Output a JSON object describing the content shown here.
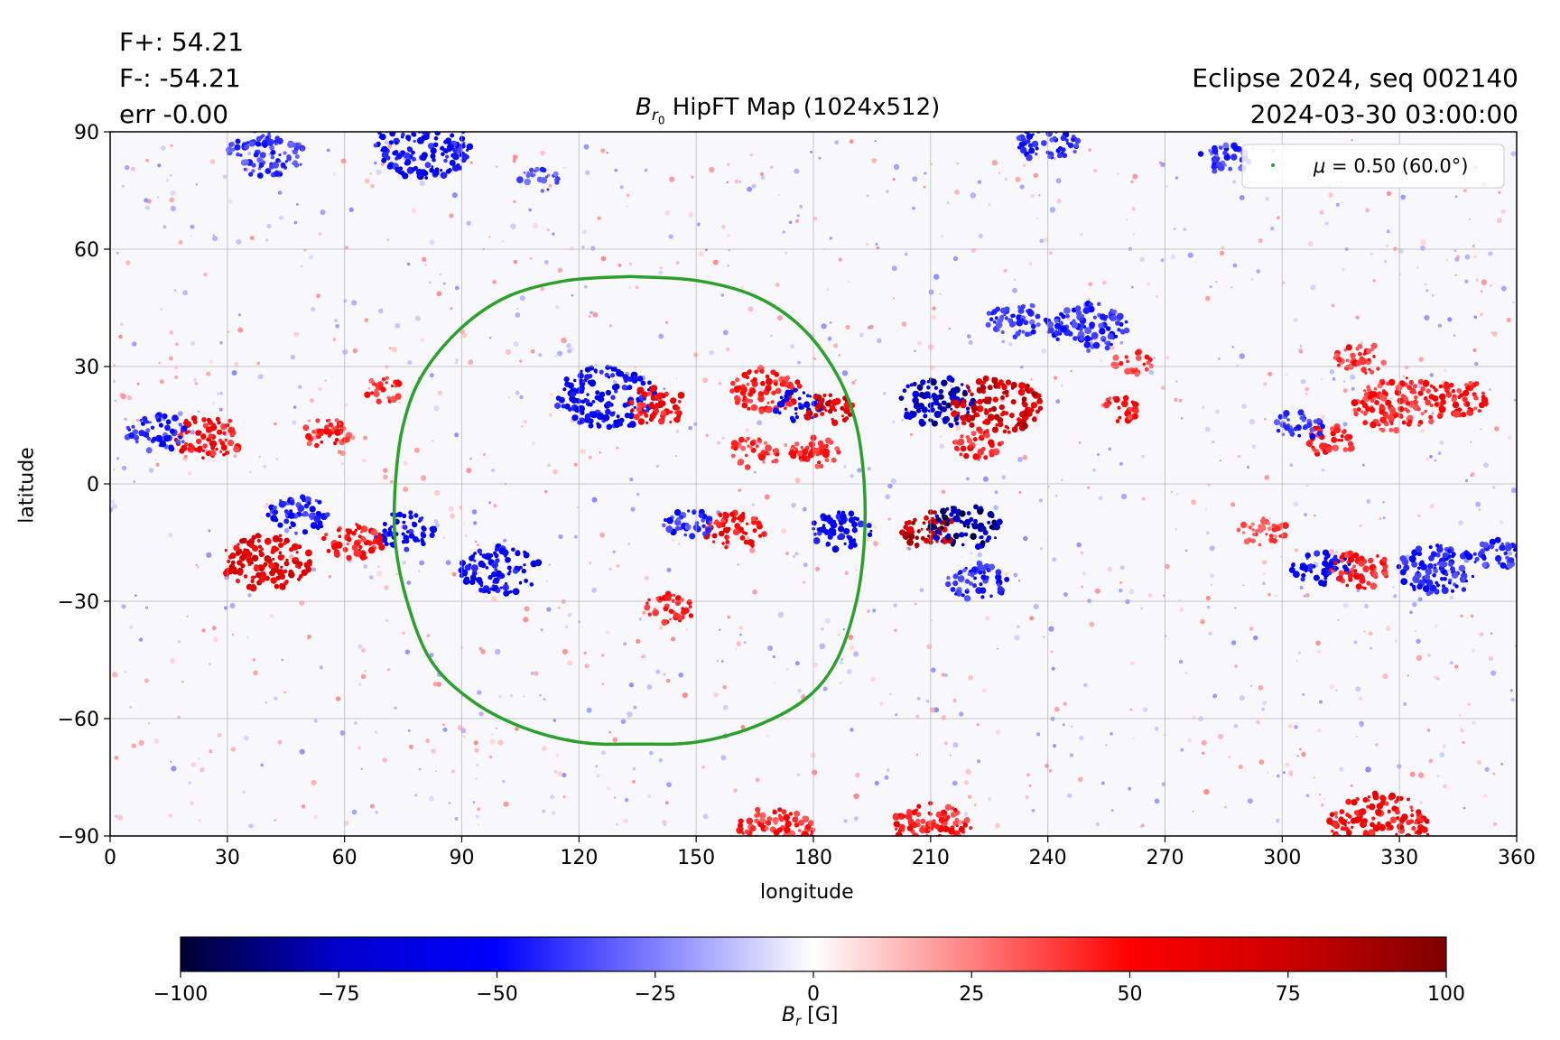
{
  "header": {
    "fplus": "F+: 54.21",
    "fminus": "F-: -54.21",
    "err": "err -0.00",
    "event": "Eclipse 2024, seq 002140",
    "datetime": "2024-03-30 03:00:00"
  },
  "chart_data": {
    "type": "heatmap",
    "title_symbol": "B",
    "title_subscript": "r",
    "title_subsubscript": "0",
    "title_text": " HipFT Map (1024x512)",
    "xlabel": "longitude",
    "ylabel": "latitude",
    "xlim": [
      0,
      360
    ],
    "ylim": [
      -90,
      90
    ],
    "xticks": [
      0,
      30,
      60,
      90,
      120,
      150,
      180,
      210,
      240,
      270,
      300,
      330,
      360
    ],
    "yticks": [
      -90,
      -60,
      -30,
      0,
      30,
      60,
      90
    ],
    "grid": true,
    "legend": {
      "placement": "top-right",
      "label_mu": "μ",
      "label_rest": " = 0.50 (60.0°)",
      "color": "#2ca02c"
    },
    "mu_contour_color": "#2ca02c",
    "mu_contour": [
      [
        133,
        53
      ],
      [
        150,
        52
      ],
      [
        165,
        48
      ],
      [
        177,
        40
      ],
      [
        186,
        28
      ],
      [
        191,
        15
      ],
      [
        193,
        0
      ],
      [
        193,
        -15
      ],
      [
        191,
        -30
      ],
      [
        186,
        -45
      ],
      [
        178,
        -55
      ],
      [
        165,
        -62
      ],
      [
        150,
        -66
      ],
      [
        135,
        -66.5
      ],
      [
        120,
        -66
      ],
      [
        105,
        -62
      ],
      [
        92,
        -55
      ],
      [
        82,
        -45
      ],
      [
        76,
        -30
      ],
      [
        73,
        -15
      ],
      [
        73,
        0
      ],
      [
        75,
        15
      ],
      [
        80,
        28
      ],
      [
        90,
        40
      ],
      [
        102,
        48
      ],
      [
        117,
        52
      ],
      [
        133,
        53
      ]
    ],
    "colorbar": {
      "label_symbol": "B",
      "label_subscript": "r",
      "label_unit": " [G]",
      "range": [
        -100,
        100
      ],
      "ticks": [
        -100,
        -75,
        -50,
        -25,
        0,
        25,
        50,
        75,
        100
      ],
      "colors": [
        "#000033",
        "#0000cc",
        "#0000ff",
        "#ffffff",
        "#ff0000",
        "#cc0000",
        "#800000"
      ]
    },
    "regions": [
      {
        "lon": 127,
        "lat": 22,
        "r": 10,
        "b": -70
      },
      {
        "lon": 140,
        "lat": 20,
        "r": 6,
        "b": 65
      },
      {
        "lon": 168,
        "lat": 24,
        "r": 7,
        "b": 60
      },
      {
        "lon": 176,
        "lat": 20,
        "r": 5,
        "b": -80
      },
      {
        "lon": 184,
        "lat": 19,
        "r": 5,
        "b": 85
      },
      {
        "lon": 165,
        "lat": 8,
        "r": 5,
        "b": 50
      },
      {
        "lon": 180,
        "lat": 8,
        "r": 5,
        "b": 55
      },
      {
        "lon": 212,
        "lat": 21,
        "r": 8,
        "b": -95
      },
      {
        "lon": 227,
        "lat": 20,
        "r": 9,
        "b": 90
      },
      {
        "lon": 222,
        "lat": 10,
        "r": 5,
        "b": 60
      },
      {
        "lon": 210,
        "lat": -12,
        "r": 6,
        "b": 100
      },
      {
        "lon": 219,
        "lat": -11,
        "r": 7,
        "b": -100
      },
      {
        "lon": 222,
        "lat": -25,
        "r": 6,
        "b": -55
      },
      {
        "lon": 187,
        "lat": -12,
        "r": 6,
        "b": -70
      },
      {
        "lon": 160,
        "lat": -12,
        "r": 6,
        "b": 65
      },
      {
        "lon": 148,
        "lat": -10,
        "r": 5,
        "b": -55
      },
      {
        "lon": 143,
        "lat": -32,
        "r": 5,
        "b": 60
      },
      {
        "lon": 100,
        "lat": -22,
        "r": 8,
        "b": -70
      },
      {
        "lon": 75,
        "lat": -12,
        "r": 6,
        "b": -70
      },
      {
        "lon": 48,
        "lat": -8,
        "r": 6,
        "b": -60
      },
      {
        "lon": 40,
        "lat": -20,
        "r": 9,
        "b": 80
      },
      {
        "lon": 62,
        "lat": -15,
        "r": 6,
        "b": 60
      },
      {
        "lon": 25,
        "lat": 12,
        "r": 7,
        "b": 65
      },
      {
        "lon": 12,
        "lat": 13,
        "r": 6,
        "b": -55
      },
      {
        "lon": 55,
        "lat": 13,
        "r": 5,
        "b": 55
      },
      {
        "lon": 70,
        "lat": 24,
        "r": 4,
        "b": 55
      },
      {
        "lon": 258,
        "lat": 19,
        "r": 4,
        "b": 60
      },
      {
        "lon": 262,
        "lat": 31,
        "r": 4,
        "b": 55
      },
      {
        "lon": 250,
        "lat": 40,
        "r": 8,
        "b": -55
      },
      {
        "lon": 232,
        "lat": 42,
        "r": 6,
        "b": -50
      },
      {
        "lon": 312,
        "lat": 11,
        "r": 5,
        "b": 60
      },
      {
        "lon": 330,
        "lat": 20,
        "r": 9,
        "b": 55
      },
      {
        "lon": 345,
        "lat": 22,
        "r": 6,
        "b": 60
      },
      {
        "lon": 305,
        "lat": 15,
        "r": 5,
        "b": -50
      },
      {
        "lon": 320,
        "lat": 32,
        "r": 5,
        "b": 55
      },
      {
        "lon": 310,
        "lat": -22,
        "r": 6,
        "b": -70
      },
      {
        "lon": 320,
        "lat": -22,
        "r": 6,
        "b": 60
      },
      {
        "lon": 340,
        "lat": -22,
        "r": 8,
        "b": -60
      },
      {
        "lon": 355,
        "lat": -18,
        "r": 5,
        "b": -55
      },
      {
        "lon": 295,
        "lat": -12,
        "r": 5,
        "b": 45
      },
      {
        "lon": 40,
        "lat": 85,
        "r": 8,
        "b": -50
      },
      {
        "lon": 80,
        "lat": 86,
        "r": 10,
        "b": -65
      },
      {
        "lon": 110,
        "lat": 78,
        "r": 4,
        "b": -45
      },
      {
        "lon": 240,
        "lat": 87,
        "r": 6,
        "b": -55
      },
      {
        "lon": 285,
        "lat": 83,
        "r": 5,
        "b": -50
      },
      {
        "lon": 210,
        "lat": -88,
        "r": 8,
        "b": 60
      },
      {
        "lon": 325,
        "lat": -87,
        "r": 10,
        "b": 65
      },
      {
        "lon": 170,
        "lat": -89,
        "r": 8,
        "b": 55
      }
    ]
  }
}
